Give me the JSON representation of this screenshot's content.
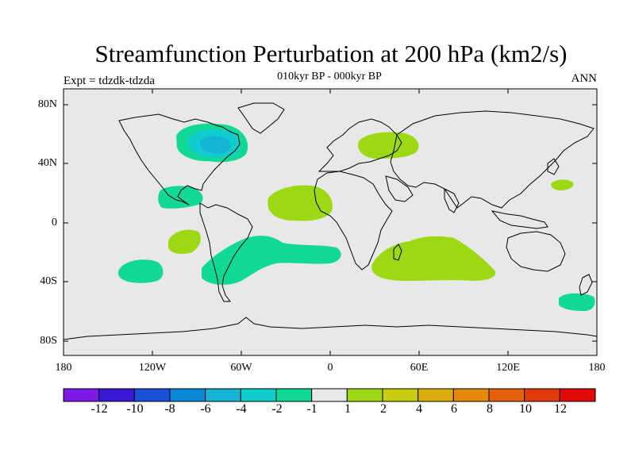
{
  "title": "Streamfunction Perturbation at 200 hPa (km2/s)",
  "subtitle": "010kyr BP - 000kyr BP",
  "left_string": "Expt = tdzdk-tdzda",
  "right_string": "ANN",
  "lat_labels": [
    "80N",
    "40N",
    "0",
    "40S",
    "80S"
  ],
  "lon_labels": [
    "180",
    "120W",
    "60W",
    "0",
    "60E",
    "120E",
    "180"
  ],
  "colorbar": {
    "labels": [
      "-12",
      "-10",
      "-8",
      "-6",
      "-4",
      "-2",
      "-1",
      "1",
      "2",
      "4",
      "6",
      "8",
      "10",
      "12"
    ],
    "colors": [
      "#7d18e6",
      "#3a18d6",
      "#1a50d8",
      "#0a88d8",
      "#14b4d4",
      "#10cccc",
      "#10d896",
      "#e8e8e8",
      "#9cd814",
      "#c8cc10",
      "#dcac0c",
      "#e4880c",
      "#e4600c",
      "#e03a0a",
      "#e00808"
    ]
  },
  "colors": {
    "ocean": "#e8e8e8",
    "neg_weak": "#10d896",
    "neg_mid": "#10cccc",
    "neg_strong": "#14b4d4",
    "pos_weak": "#9cd814"
  }
}
